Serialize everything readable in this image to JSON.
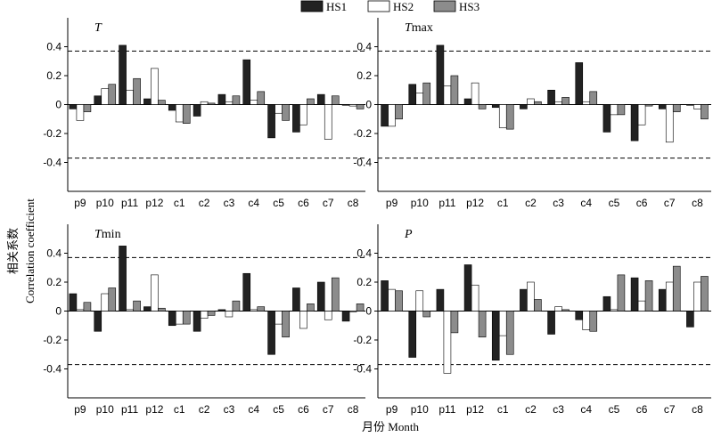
{
  "legend": {
    "items": [
      {
        "label": "HS1",
        "color": "#222222"
      },
      {
        "label": "HS2",
        "color": "#ffffff"
      },
      {
        "label": "HS3",
        "color": "#8c8c8c"
      }
    ]
  },
  "xlabel": "月份 Month",
  "ylabel_cn": "相关系数",
  "ylabel_en": "Correlation coefficient",
  "chart_data": [
    {
      "type": "bar",
      "title_main": "T",
      "title_sub": "",
      "categories": [
        "p9",
        "p10",
        "p11",
        "p12",
        "c1",
        "c2",
        "c3",
        "c4",
        "c5",
        "c6",
        "c7",
        "c8"
      ],
      "ylim": [
        -0.6,
        0.6
      ],
      "yticks": [
        "0.4",
        "0.2",
        "0",
        "-0.2",
        "-0.4"
      ],
      "threshold": [
        0.37,
        -0.37
      ],
      "series": [
        {
          "name": "HS1",
          "values": [
            -0.03,
            0.06,
            0.41,
            0.04,
            -0.04,
            -0.08,
            0.07,
            0.31,
            -0.23,
            -0.19,
            0.07,
            0.0
          ]
        },
        {
          "name": "HS2",
          "values": [
            -0.11,
            0.11,
            0.1,
            0.25,
            -0.12,
            0.02,
            0.02,
            0.03,
            -0.06,
            -0.14,
            -0.24,
            -0.01
          ]
        },
        {
          "name": "HS3",
          "values": [
            -0.05,
            0.14,
            0.18,
            0.03,
            -0.13,
            0.01,
            0.06,
            0.09,
            -0.11,
            0.04,
            0.06,
            -0.03
          ]
        }
      ]
    },
    {
      "type": "bar",
      "title_main": "T",
      "title_sub": "max",
      "categories": [
        "p9",
        "p10",
        "p11",
        "p12",
        "c1",
        "c2",
        "c3",
        "c4",
        "c5",
        "c6",
        "c7",
        "c8"
      ],
      "ylim": [
        -0.6,
        0.6
      ],
      "yticks": [
        "0.4",
        "0.2",
        "0",
        "-0.2",
        "-0.4"
      ],
      "threshold": [
        0.37,
        -0.37
      ],
      "series": [
        {
          "name": "HS1",
          "values": [
            -0.15,
            0.14,
            0.41,
            0.04,
            -0.02,
            -0.03,
            0.1,
            0.29,
            -0.19,
            -0.25,
            -0.03,
            0.0
          ]
        },
        {
          "name": "HS2",
          "values": [
            -0.15,
            0.08,
            0.13,
            0.15,
            -0.16,
            0.04,
            0.02,
            0.02,
            -0.07,
            -0.14,
            -0.26,
            -0.03
          ]
        },
        {
          "name": "HS3",
          "values": [
            -0.1,
            0.15,
            0.2,
            -0.03,
            -0.17,
            0.02,
            0.05,
            0.09,
            -0.07,
            -0.01,
            -0.05,
            -0.1
          ]
        }
      ]
    },
    {
      "type": "bar",
      "title_main": "T",
      "title_sub": "min",
      "categories": [
        "p9",
        "p10",
        "p11",
        "p12",
        "c1",
        "c2",
        "c3",
        "c4",
        "c5",
        "c6",
        "c7",
        "c8"
      ],
      "ylim": [
        -0.6,
        0.6
      ],
      "yticks": [
        "0.4",
        "0.2",
        "0",
        "-0.2",
        "-0.4"
      ],
      "threshold": [
        0.37,
        -0.37
      ],
      "series": [
        {
          "name": "HS1",
          "values": [
            0.12,
            -0.14,
            0.45,
            0.03,
            -0.1,
            -0.14,
            0.01,
            0.26,
            -0.3,
            0.16,
            0.2,
            -0.07
          ]
        },
        {
          "name": "HS2",
          "values": [
            0.01,
            0.12,
            0.01,
            0.25,
            -0.09,
            -0.05,
            -0.04,
            0.01,
            -0.09,
            -0.12,
            -0.06,
            0.0
          ]
        },
        {
          "name": "HS3",
          "values": [
            0.06,
            0.16,
            0.07,
            0.02,
            -0.09,
            -0.03,
            0.07,
            0.03,
            -0.18,
            0.05,
            0.23,
            0.05
          ]
        }
      ]
    },
    {
      "type": "bar",
      "title_main": "P",
      "title_sub": "",
      "categories": [
        "p9",
        "p10",
        "p11",
        "p12",
        "c1",
        "c2",
        "c3",
        "c4",
        "c5",
        "c6",
        "c7",
        "c8"
      ],
      "ylim": [
        -0.6,
        0.6
      ],
      "yticks": [
        "0.4",
        "0.2",
        "0",
        "-0.2",
        "-0.4"
      ],
      "threshold": [
        0.37,
        -0.37
      ],
      "series": [
        {
          "name": "HS1",
          "values": [
            0.21,
            -0.32,
            0.15,
            0.32,
            -0.34,
            0.15,
            -0.16,
            -0.06,
            0.1,
            0.23,
            0.15,
            -0.11
          ]
        },
        {
          "name": "HS2",
          "values": [
            0.15,
            0.14,
            -0.43,
            0.18,
            -0.17,
            0.2,
            0.03,
            -0.13,
            0.01,
            0.07,
            0.2,
            0.2
          ]
        },
        {
          "name": "HS3",
          "values": [
            0.14,
            -0.04,
            -0.15,
            -0.18,
            -0.3,
            0.08,
            0.01,
            -0.14,
            0.25,
            0.21,
            0.31,
            0.24
          ]
        }
      ]
    }
  ]
}
